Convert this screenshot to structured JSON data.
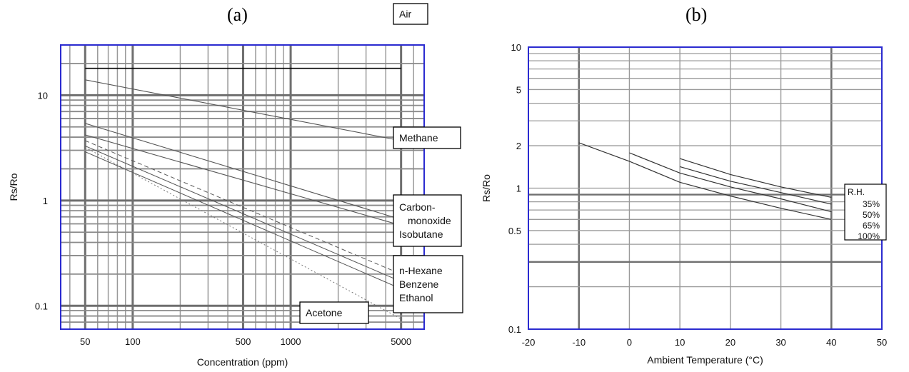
{
  "chart_data": [
    {
      "type": "line",
      "panel_label": "(a)",
      "xlabel": "Concentration (ppm)",
      "ylabel": "Rs/Ro",
      "xscale": "log",
      "yscale": "log",
      "xlim": [
        35,
        7000
      ],
      "ylim": [
        0.06,
        30
      ],
      "xticks": [
        {
          "value": 50,
          "label": "50"
        },
        {
          "value": 100,
          "label": "100"
        },
        {
          "value": 500,
          "label": "500"
        },
        {
          "value": 1000,
          "label": "1000"
        },
        {
          "value": 5000,
          "label": "5000"
        }
      ],
      "yticks": [
        {
          "value": 0.1,
          "label": "0.1"
        },
        {
          "value": 1,
          "label": "1"
        },
        {
          "value": 10,
          "label": "10"
        }
      ],
      "grid": true,
      "series": [
        {
          "key": "air",
          "x": [
            50,
            5000
          ],
          "y": [
            18,
            18
          ],
          "width": 1.6,
          "color": "#000000",
          "dash": ""
        },
        {
          "key": "methane",
          "x": [
            50,
            5000
          ],
          "y": [
            14,
            3.7
          ],
          "width": 1.1,
          "color": "#555555",
          "dash": ""
        },
        {
          "key": "co",
          "x": [
            50,
            5000
          ],
          "y": [
            5.4,
            0.66
          ],
          "width": 1.1,
          "color": "#555555",
          "dash": ""
        },
        {
          "key": "isobutane",
          "x": [
            50,
            5000
          ],
          "y": [
            4.2,
            0.58
          ],
          "width": 1.1,
          "color": "#555555",
          "dash": ""
        },
        {
          "key": "hexane",
          "x": [
            50,
            5000
          ],
          "y": [
            3.7,
            0.2
          ],
          "width": 1.0,
          "color": "#555555",
          "dash": "6,4"
        },
        {
          "key": "benzene",
          "x": [
            50,
            5000
          ],
          "y": [
            3.3,
            0.17
          ],
          "width": 1.0,
          "color": "#555555",
          "dash": ""
        },
        {
          "key": "ethanol",
          "x": [
            50,
            5000
          ],
          "y": [
            2.9,
            0.145
          ],
          "width": 1.0,
          "color": "#555555",
          "dash": ""
        },
        {
          "key": "acetone",
          "x": [
            50,
            5000
          ],
          "y": [
            3.2,
            0.075
          ],
          "width": 1.0,
          "color": "#777777",
          "dash": "2,3"
        }
      ],
      "annotations": [
        {
          "key": "air",
          "lines": [
            "Air"
          ],
          "box": true
        },
        {
          "key": "methane",
          "lines": [
            "Methane"
          ],
          "box": true
        },
        {
          "key": "co_iso",
          "lines": [
            "Carbon-",
            "monoxide",
            "Isobutane"
          ],
          "box": true
        },
        {
          "key": "hbe",
          "lines": [
            "n-Hexane",
            "Benzene",
            "Ethanol"
          ],
          "box": true
        },
        {
          "key": "acetone",
          "lines": [
            "Acetone"
          ],
          "box": true
        }
      ]
    },
    {
      "type": "line",
      "panel_label": "(b)",
      "xlabel": "Ambient Temperature (°C)",
      "ylabel": "Rs/Ro",
      "yscale": "log",
      "xlim": [
        -20,
        50
      ],
      "ylim": [
        0.1,
        10
      ],
      "xticks": [
        {
          "value": -20,
          "label": "-20"
        },
        {
          "value": -10,
          "label": "-10"
        },
        {
          "value": 0,
          "label": "0"
        },
        {
          "value": 10,
          "label": "10"
        },
        {
          "value": 20,
          "label": "20"
        },
        {
          "value": 30,
          "label": "30"
        },
        {
          "value": 40,
          "label": "40"
        },
        {
          "value": 50,
          "label": "50"
        }
      ],
      "yticks": [
        {
          "value": 0.1,
          "label": "0.1"
        },
        {
          "value": 0.5,
          "label": "0.5"
        },
        {
          "value": 1,
          "label": "1"
        },
        {
          "value": 2,
          "label": "2"
        },
        {
          "value": 5,
          "label": "5"
        },
        {
          "value": 10,
          "label": "10"
        }
      ],
      "grid": true,
      "legend": {
        "title": "R.H.",
        "entries": [
          "35%",
          "50%",
          "65%",
          "100%"
        ],
        "position": "right"
      },
      "series": [
        {
          "name": "35%",
          "x": [
            10,
            20,
            30,
            40
          ],
          "y": [
            1.62,
            1.25,
            1.02,
            0.86
          ]
        },
        {
          "name": "50%",
          "x": [
            10,
            20,
            30,
            40
          ],
          "y": [
            1.42,
            1.12,
            0.93,
            0.77
          ]
        },
        {
          "name": "65%",
          "x": [
            0,
            10,
            20,
            30,
            40
          ],
          "y": [
            1.78,
            1.28,
            1.02,
            0.84,
            0.68
          ]
        },
        {
          "name": "100%",
          "x": [
            -10,
            0,
            10,
            20,
            30,
            40
          ],
          "y": [
            2.1,
            1.55,
            1.1,
            0.88,
            0.72,
            0.6
          ]
        }
      ]
    }
  ]
}
